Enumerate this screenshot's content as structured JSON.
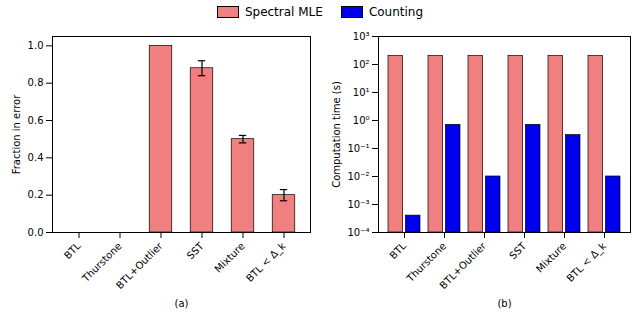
{
  "chart_data": [
    {
      "type": "bar",
      "categories": [
        "BTL",
        "Thurstone",
        "BTL+Outlier",
        "SST",
        "Mixture",
        "BTL < Δ_k"
      ],
      "series": [
        {
          "name": "Spectral MLE",
          "color": "#F08080",
          "values": [
            0.0,
            0.0,
            1.0,
            0.88,
            0.5,
            0.2
          ],
          "errors": [
            0.0,
            0.0,
            0.0,
            0.04,
            0.02,
            0.03
          ]
        }
      ],
      "ylabel": "Fraction in error",
      "xlabel": "(a)",
      "ylim": [
        0.0,
        1.05
      ],
      "yticks": [
        {
          "value": 0,
          "label": "0.0"
        },
        0.2,
        0.4,
        0.6,
        0.8,
        {
          "value": 1,
          "label": "1.0"
        }
      ]
    },
    {
      "type": "bar",
      "categories": [
        "BTL",
        "Thurstone",
        "BTL+Outlier",
        "SST",
        "Mixture",
        "BTL < Δ_k"
      ],
      "series": [
        {
          "name": "Spectral MLE",
          "color": "#F08080",
          "values": [
            200.0,
            200.0,
            200.0,
            200.0,
            200.0,
            200.0
          ]
        },
        {
          "name": "Counting",
          "color": "#0000EE",
          "values": [
            0.0004,
            0.7,
            0.01,
            0.7,
            0.3,
            0.01
          ]
        }
      ],
      "ylabel": "Computation time (s)",
      "xlabel": "(b)",
      "log": "y",
      "ylim": [
        0.0001,
        1000.0
      ],
      "yticks": [
        {
          "value": 0.0001,
          "label": "10⁻⁴"
        },
        {
          "value": 0.001,
          "label": "10⁻³"
        },
        {
          "value": 0.01,
          "label": "10⁻²"
        },
        {
          "value": 0.1,
          "label": "10⁻¹"
        },
        {
          "value": 1,
          "label": "10⁰"
        },
        {
          "value": 10,
          "label": "10¹"
        },
        {
          "value": 100,
          "label": "10²"
        },
        {
          "value": 1000,
          "label": "10³"
        }
      ],
      "legend": "top"
    }
  ]
}
